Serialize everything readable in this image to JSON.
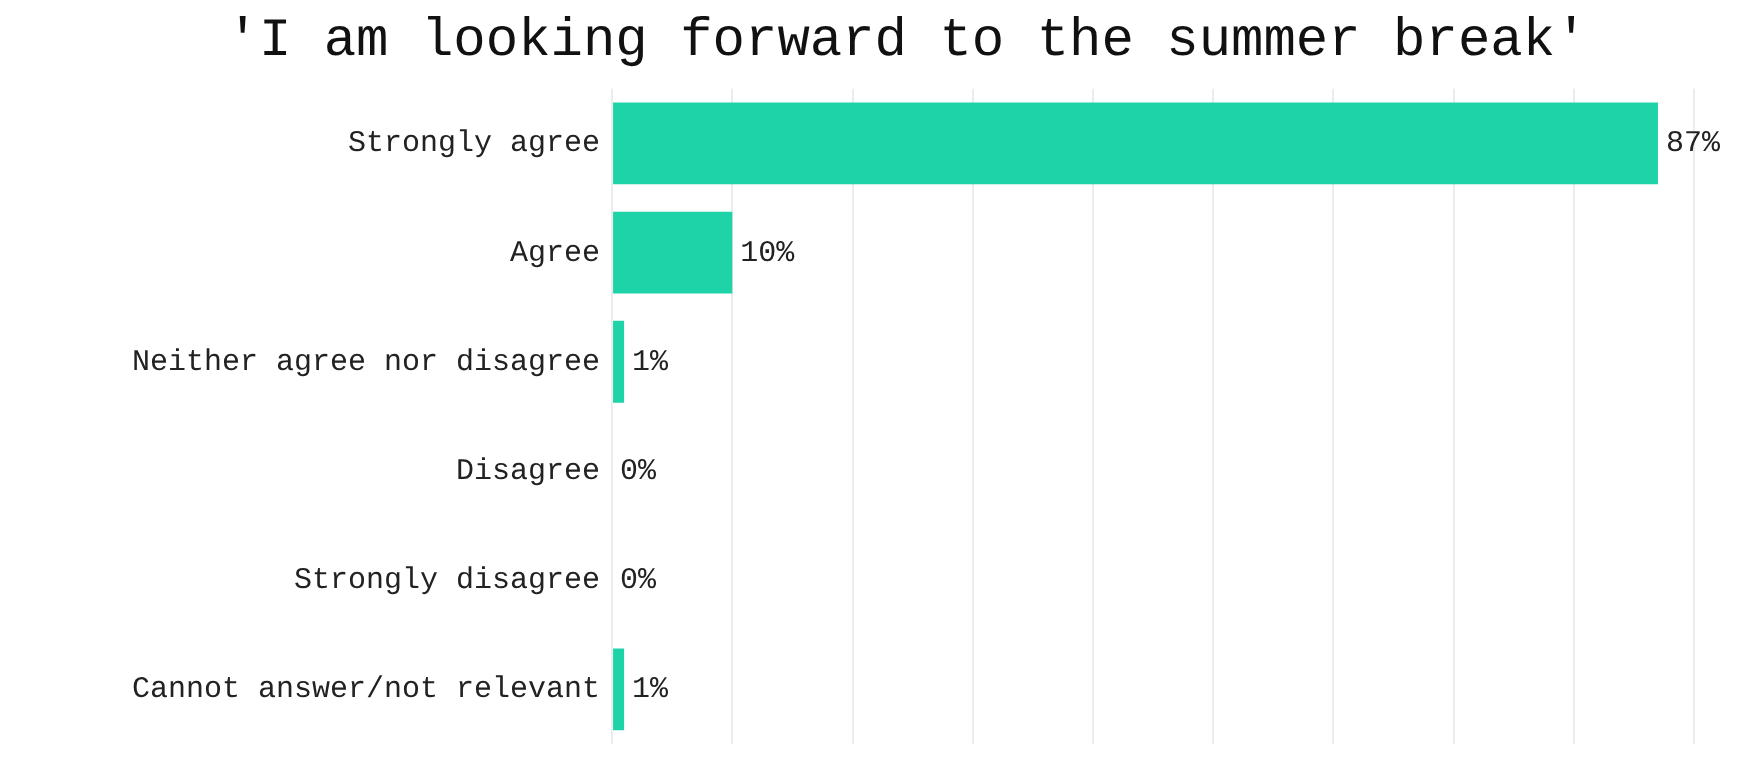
{
  "chart_data": {
    "type": "bar",
    "orientation": "horizontal",
    "title": "'I am looking forward to the summer break'",
    "categories": [
      "Strongly agree",
      "Agree",
      "Neither agree nor disagree",
      "Disagree",
      "Strongly disagree",
      "Cannot answer/not relevant"
    ],
    "values": [
      87,
      10,
      1,
      0,
      0,
      1
    ],
    "value_labels": [
      "87%",
      "10%",
      "1%",
      "0%",
      "0%",
      "1%"
    ],
    "color": "#1dd3a7",
    "grid": "x",
    "tick_labels": "y"
  }
}
